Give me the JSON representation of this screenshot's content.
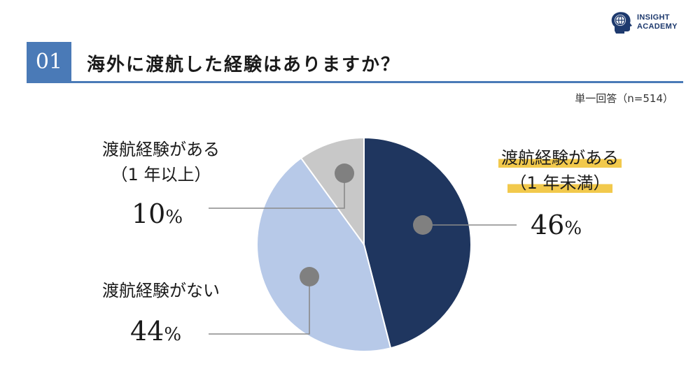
{
  "header": {
    "number": "01",
    "title": "海外に渡航した経験はありますか？",
    "note": "単一回答（n=514）",
    "logo_line1": "INSIGHT",
    "logo_line2": "ACADEMY"
  },
  "colors": {
    "accent": "#4a7ab7",
    "highlight": "#f2c94c"
  },
  "chart_data": {
    "type": "pie",
    "start": "12 o'clock, clockwise",
    "slices": [
      {
        "label_line1": "渡航経験がある",
        "label_line2": "（1 年未満）",
        "value": 46,
        "value_text": "46",
        "unit": "%",
        "color": "#1f365f",
        "highlighted": true
      },
      {
        "label_line1": "渡航経験がない",
        "label_line2": "",
        "value": 44,
        "value_text": "44",
        "unit": "%",
        "color": "#b7c9e8",
        "highlighted": false
      },
      {
        "label_line1": "渡航経験がある",
        "label_line2": "（1 年以上）",
        "value": 10,
        "value_text": "10",
        "unit": "%",
        "color": "#c8c8c8",
        "highlighted": false
      }
    ]
  }
}
